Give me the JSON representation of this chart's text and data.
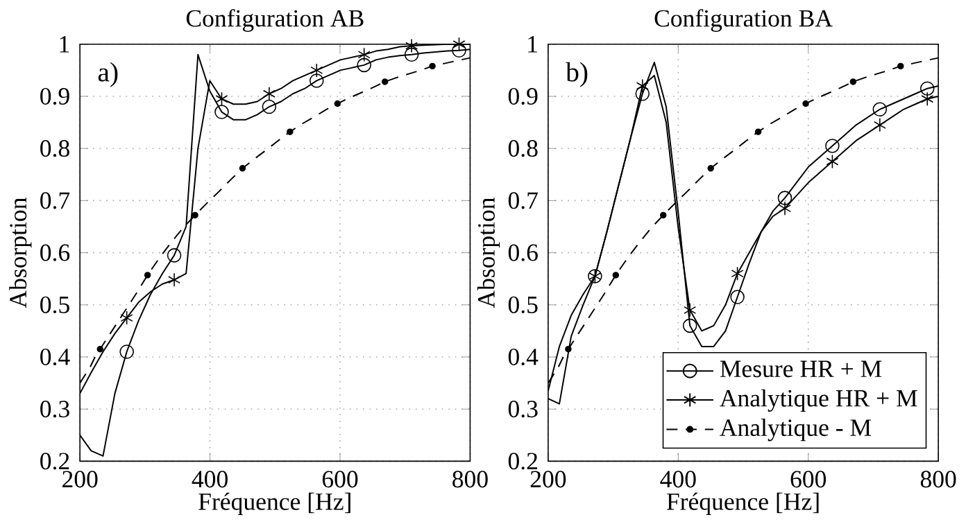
{
  "chart_data": [
    {
      "type": "line",
      "title": "Configuration AB",
      "xlabel": "Fréquence [Hz]",
      "ylabel": "Absorption",
      "annotations": [
        "a)"
      ],
      "xlim": [
        200,
        800
      ],
      "ylim": [
        0.2,
        1
      ],
      "xticks": [
        200,
        400,
        600,
        800
      ],
      "yticks": [
        0.2,
        0.3,
        0.4,
        0.5,
        0.6,
        0.7,
        0.8,
        0.9,
        1
      ],
      "grid": true,
      "legend": false,
      "x": [
        200,
        217.25,
        235.5,
        253.75,
        272,
        290.25,
        308.5,
        326.75,
        345,
        363.25,
        381.5,
        399.75,
        418,
        436.25,
        454.5,
        472.75,
        491,
        509.25,
        527.5,
        545.75,
        564,
        582.25,
        600.5,
        618.75,
        637,
        655.25,
        673.5,
        691.75,
        710,
        728.25,
        746.5,
        764.75,
        783,
        800
      ],
      "series": [
        {
          "color": "#000000",
          "line_style": "solid",
          "values": [
            0.25,
            0.22,
            0.21,
            0.33,
            0.41,
            0.47,
            0.52,
            0.56,
            0.595,
            0.65,
            0.98,
            0.91,
            0.87,
            0.855,
            0.855,
            0.865,
            0.88,
            0.89,
            0.905,
            0.915,
            0.93,
            0.94,
            0.95,
            0.955,
            0.96,
            0.97,
            0.975,
            0.978,
            0.98,
            0.983,
            0.985,
            0.987,
            0.988,
            0.99
          ]
        },
        {
          "color": "#000000",
          "line_style": "solid",
          "values": [
            0.33,
            0.37,
            0.41,
            0.445,
            0.475,
            0.505,
            0.525,
            0.54,
            0.548,
            0.56,
            0.8,
            0.93,
            0.895,
            0.885,
            0.885,
            0.89,
            0.905,
            0.915,
            0.93,
            0.94,
            0.95,
            0.96,
            0.97,
            0.975,
            0.98,
            0.987,
            0.99,
            0.995,
            0.997,
            0.998,
            0.999,
            1.0,
            1.0,
            1.0
          ]
        },
        {
          "color": "#000000",
          "line_style": "dashed",
          "x": [
            200,
            207.75,
            215.5,
            223.25,
            231,
            249.25,
            267.5,
            285.75,
            304,
            322.25,
            340.5,
            358.75,
            377,
            395.25,
            413.5,
            431.75,
            450,
            468.25,
            486.5,
            504.75,
            523,
            541.25,
            559.5,
            577.75,
            596,
            614.25,
            632.5,
            650.75,
            669,
            687.25,
            705.5,
            723.75,
            742,
            760.25,
            778.5,
            796.75,
            800
          ],
          "values": [
            0.35,
            0.365,
            0.38,
            0.4,
            0.415,
            0.45,
            0.485,
            0.52,
            0.557,
            0.59,
            0.62,
            0.648,
            0.672,
            0.695,
            0.717,
            0.74,
            0.762,
            0.78,
            0.797,
            0.815,
            0.832,
            0.847,
            0.86,
            0.874,
            0.886,
            0.897,
            0.907,
            0.917,
            0.928,
            0.936,
            0.943,
            0.95,
            0.958,
            0.963,
            0.968,
            0.973,
            0.974
          ]
        },
        {
          "type": "scatter",
          "color": "#000000",
          "marker": "circle",
          "x": [
            272,
            345,
            418,
            491,
            564,
            637,
            710,
            783
          ],
          "values": [
            0.41,
            0.595,
            0.87,
            0.88,
            0.93,
            0.96,
            0.98,
            0.988
          ]
        },
        {
          "type": "scatter",
          "color": "#000000",
          "marker": "cross",
          "x": [
            272,
            345,
            418,
            491,
            564,
            637,
            710,
            783
          ],
          "values": [
            0.475,
            0.548,
            0.895,
            0.905,
            0.95,
            0.98,
            0.997,
            1.0
          ]
        },
        {
          "type": "scatter",
          "color": "#000000",
          "marker": "circle",
          "x": [
            231,
            304,
            377,
            450,
            523,
            596,
            669,
            742
          ],
          "values": [
            0.415,
            0.557,
            0.672,
            0.762,
            0.832,
            0.886,
            0.928,
            0.958
          ]
        }
      ]
    },
    {
      "type": "line",
      "title": "Configuration BA",
      "xlabel": "Fréquence [Hz]",
      "ylabel": "Absorption",
      "annotations": [
        "b)"
      ],
      "xlim": [
        200,
        800
      ],
      "ylim": [
        0.2,
        1
      ],
      "xticks": [
        200,
        400,
        600,
        800
      ],
      "yticks": [
        0.2,
        0.3,
        0.4,
        0.5,
        0.6,
        0.7,
        0.8,
        0.9,
        1
      ],
      "grid": true,
      "legend": "bottom right",
      "x": [
        200,
        217.25,
        235.5,
        253.75,
        272,
        290.25,
        308.5,
        326.75,
        345,
        363.25,
        381.5,
        399.75,
        418,
        436.25,
        454.5,
        472.75,
        491,
        509.25,
        527.5,
        545.75,
        564,
        582.25,
        600.5,
        618.75,
        637,
        655.25,
        673.5,
        691.75,
        710,
        728.25,
        746.5,
        764.75,
        783,
        800
      ],
      "series": [
        {
          "name": "Mesure HR + M",
          "color": "#000000",
          "line_style": "solid",
          "values": [
            0.32,
            0.31,
            0.44,
            0.5,
            0.555,
            0.64,
            0.73,
            0.82,
            0.905,
            0.965,
            0.88,
            0.68,
            0.46,
            0.42,
            0.42,
            0.45,
            0.515,
            0.58,
            0.64,
            0.68,
            0.705,
            0.735,
            0.765,
            0.785,
            0.805,
            0.825,
            0.845,
            0.86,
            0.875,
            0.885,
            0.895,
            0.905,
            0.915,
            0.92
          ]
        },
        {
          "name": "Analytique HR + M",
          "color": "#000000",
          "line_style": "solid",
          "values": [
            0.335,
            0.42,
            0.48,
            0.52,
            0.555,
            0.64,
            0.73,
            0.82,
            0.92,
            0.94,
            0.85,
            0.65,
            0.49,
            0.45,
            0.46,
            0.5,
            0.56,
            0.6,
            0.64,
            0.67,
            0.685,
            0.71,
            0.735,
            0.755,
            0.775,
            0.795,
            0.815,
            0.83,
            0.845,
            0.86,
            0.875,
            0.885,
            0.895,
            0.9
          ]
        },
        {
          "name": "Analytique - M",
          "color": "#000000",
          "line_style": "dashed",
          "x": [
            200,
            207.75,
            215.5,
            223.25,
            231,
            249.25,
            267.5,
            285.75,
            304,
            322.25,
            340.5,
            358.75,
            377,
            395.25,
            413.5,
            431.75,
            450,
            468.25,
            486.5,
            504.75,
            523,
            541.25,
            559.5,
            577.75,
            596,
            614.25,
            632.5,
            650.75,
            669,
            687.25,
            705.5,
            723.75,
            742,
            760.25,
            778.5,
            796.75,
            800
          ],
          "values": [
            0.35,
            0.365,
            0.38,
            0.4,
            0.415,
            0.45,
            0.485,
            0.52,
            0.557,
            0.59,
            0.62,
            0.648,
            0.672,
            0.695,
            0.717,
            0.74,
            0.762,
            0.78,
            0.797,
            0.815,
            0.832,
            0.847,
            0.86,
            0.874,
            0.886,
            0.897,
            0.907,
            0.917,
            0.928,
            0.936,
            0.943,
            0.95,
            0.958,
            0.963,
            0.968,
            0.973,
            0.974
          ]
        },
        {
          "type": "scatter",
          "color": "#000000",
          "marker": "circle",
          "x": [
            272,
            345,
            418,
            491,
            564,
            637,
            710,
            783
          ],
          "values": [
            0.555,
            0.905,
            0.46,
            0.515,
            0.705,
            0.805,
            0.875,
            0.915
          ]
        },
        {
          "type": "scatter",
          "color": "#000000",
          "marker": "cross",
          "x": [
            272,
            345,
            418,
            491,
            564,
            637,
            710,
            783
          ],
          "values": [
            0.555,
            0.92,
            0.49,
            0.56,
            0.685,
            0.775,
            0.845,
            0.895
          ]
        },
        {
          "type": "scatter",
          "color": "#000000",
          "marker": "circle",
          "x": [
            231,
            304,
            377,
            450,
            523,
            596,
            669,
            742
          ],
          "values": [
            0.415,
            0.557,
            0.672,
            0.762,
            0.832,
            0.886,
            0.928,
            0.958
          ]
        }
      ]
    }
  ]
}
